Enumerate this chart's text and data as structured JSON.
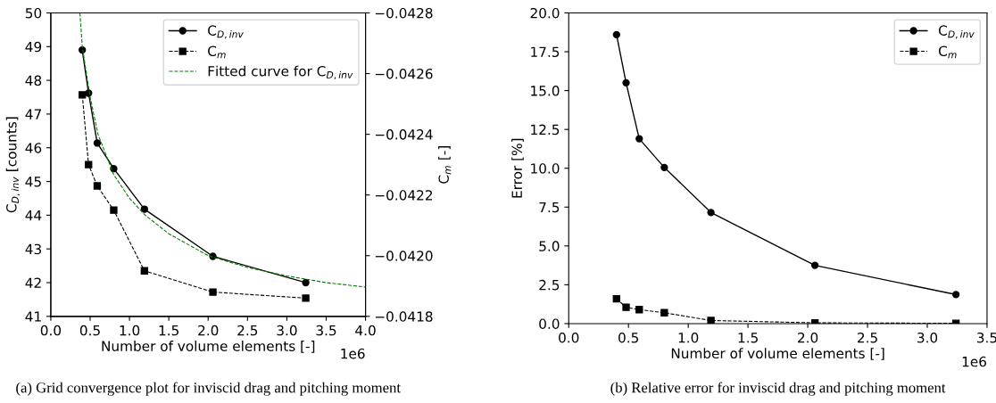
{
  "chart_data": [
    {
      "type": "line",
      "xlabel": "Number of volume elements [-]",
      "ylabel": "C$_{D,inv}$ [counts]",
      "y2label": "C$_{m}$ [-]",
      "xlim": [
        0,
        4
      ],
      "xticks": [
        {
          "value": 0,
          "label": "0.0"
        },
        0.5,
        {
          "value": 1,
          "label": "1.0"
        },
        1.5,
        {
          "value": 2,
          "label": "2.0"
        },
        2.5,
        {
          "value": 3,
          "label": "3.0"
        },
        3.5,
        {
          "value": 4,
          "label": "4.0"
        }
      ],
      "ylim": [
        41,
        50
      ],
      "yticks": [
        41,
        42,
        43,
        44,
        45,
        46,
        47,
        48,
        49,
        50
      ],
      "y2lim": [
        -0.0418,
        -0.0428
      ],
      "y2ticks": [
        {
          "value": -0.0418,
          "label": "−0.0418"
        },
        {
          "value": -0.042,
          "label": "−0.0420"
        },
        {
          "value": -0.0422,
          "label": "−0.0422"
        },
        {
          "value": -0.0424,
          "label": "−0.0424"
        },
        {
          "value": -0.0426,
          "label": "−0.0426"
        },
        {
          "value": -0.0428,
          "label": "−0.0428"
        }
      ],
      "x": [
        0.4,
        0.48,
        0.59,
        0.8,
        1.19,
        2.06,
        3.24
      ],
      "legend": "top right",
      "grid": false,
      "series": [
        {
          "name": "C$_{D,inv}$",
          "color": "#000000",
          "marker": "circle",
          "line_style": "solid",
          "values": [
            48.9,
            47.62,
            46.14,
            45.38,
            44.18,
            42.78,
            42.0
          ]
        },
        {
          "name": "C$_{m}$",
          "color": "#000000",
          "marker": "square",
          "line_style": "dashed",
          "axis": "y2",
          "values": [
            -0.04253,
            -0.0423,
            -0.04223,
            -0.04215,
            -0.04195,
            -0.04188,
            -0.04186
          ]
        },
        {
          "name": "Fitted curve for C$_{D,inv}$",
          "color": "#008000",
          "marker": "none",
          "line_style": "dashed",
          "x": [
            0.37,
            0.4,
            0.5,
            0.6,
            0.8,
            1.0,
            1.2,
            1.5,
            2.0,
            2.5,
            3.0,
            3.5,
            4.0
          ],
          "values": [
            50.0,
            49.0,
            47.5,
            46.4,
            45.2,
            44.5,
            44.0,
            43.45,
            42.8,
            42.45,
            42.2,
            42.0,
            41.87
          ]
        }
      ],
      "annotations": [
        "1e6",
        "(a) Grid convergence plot for inviscid drag and pitching moment"
      ]
    },
    {
      "type": "line",
      "xlabel": "Number of volume elements [-]",
      "ylabel": "Error [%]",
      "xlim": [
        0,
        3.5
      ],
      "xticks": [
        {
          "value": 0,
          "label": "0.0"
        },
        0.5,
        {
          "value": 1,
          "label": "1.0"
        },
        1.5,
        {
          "value": 2,
          "label": "2.0"
        },
        2.5,
        {
          "value": 3,
          "label": "3.0"
        },
        3.5
      ],
      "ylim": [
        0,
        20
      ],
      "yticks": [
        {
          "value": 0,
          "label": "0.0"
        },
        {
          "value": 2.5,
          "label": "2.5"
        },
        {
          "value": 5,
          "label": "5.0"
        },
        {
          "value": 7.5,
          "label": "7.5"
        },
        {
          "value": 10,
          "label": "10.0"
        },
        {
          "value": 12.5,
          "label": "12.5"
        },
        {
          "value": 15,
          "label": "15.0"
        },
        {
          "value": 17.5,
          "label": "17.5"
        },
        {
          "value": 20,
          "label": "20.0"
        }
      ],
      "x": [
        0.4,
        0.48,
        0.59,
        0.8,
        1.19,
        2.06,
        3.24
      ],
      "legend": "top right",
      "grid": false,
      "series": [
        {
          "name": "C$_{D,inv}$",
          "color": "#000000",
          "marker": "circle",
          "line_style": "solid",
          "values": [
            18.6,
            15.5,
            11.9,
            10.05,
            7.15,
            3.75,
            1.87
          ]
        },
        {
          "name": "C$_{m}$",
          "color": "#000000",
          "marker": "square",
          "line_style": "dashed",
          "values": [
            1.6,
            1.05,
            0.9,
            0.7,
            0.2,
            0.05,
            0.02
          ]
        }
      ],
      "annotations": [
        "1e6",
        "(b) Relative error for inviscid drag and pitching moment"
      ]
    }
  ]
}
